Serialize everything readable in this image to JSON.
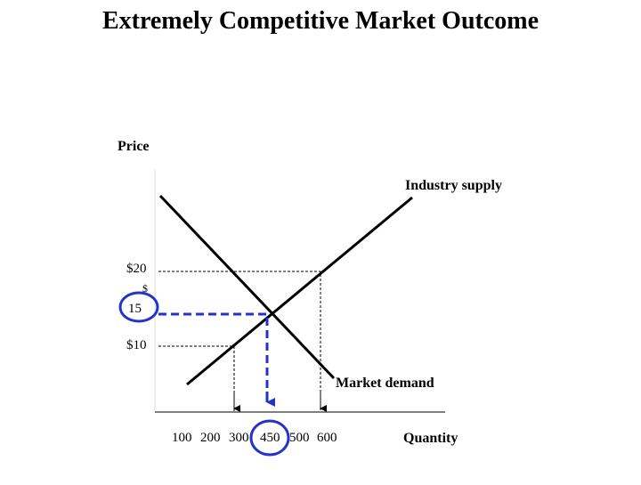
{
  "title": "Extremely Competitive Market Outcome",
  "y_axis_label": "Price",
  "x_axis_label": "Quantity",
  "curves": {
    "supply": "Industry supply",
    "demand": "Market demand"
  },
  "price_labels": {
    "high": "$20",
    "mid_symbol": "$",
    "mid": "15",
    "low": "$10"
  },
  "quantity_labels": [
    "100",
    "200",
    "300",
    "450",
    "500",
    "600"
  ]
}
